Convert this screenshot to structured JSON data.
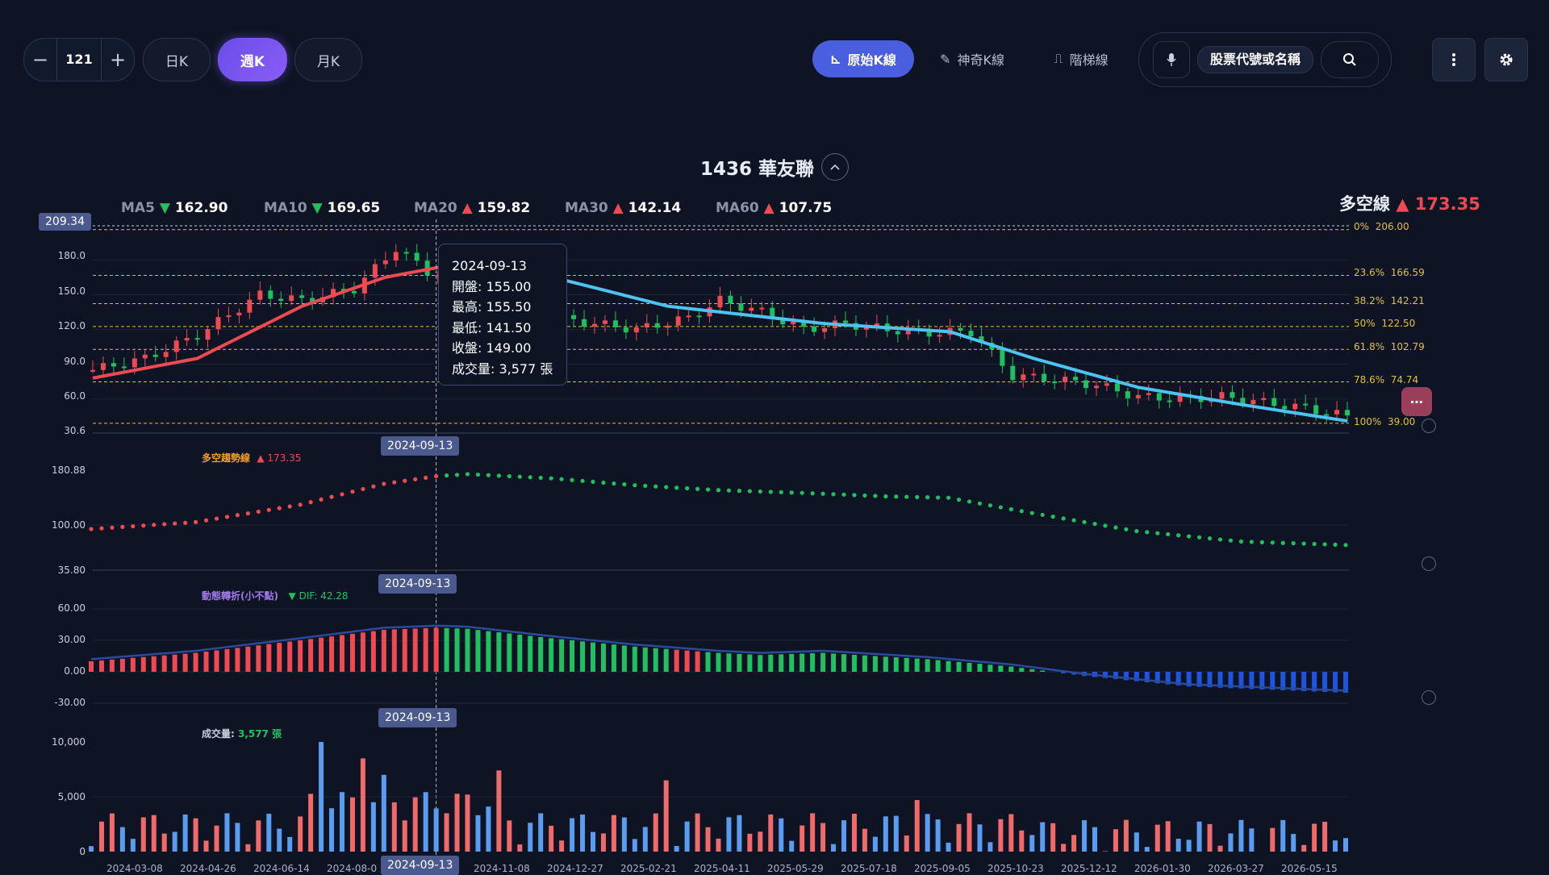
{
  "toolbar": {
    "stepper_value": "121",
    "minus": "−",
    "plus": "+",
    "period_tabs": [
      "日K",
      "週K",
      "月K"
    ],
    "active_period": "週K",
    "modes": [
      "原始K線",
      "神奇K線",
      "階梯線"
    ],
    "active_mode": "原始K線",
    "search_placeholder": "股票代號或名稱"
  },
  "stock": {
    "title": "1436 華友聯"
  },
  "ma": {
    "ma5": {
      "label": "MA5",
      "dir": "▼",
      "value": "162.90",
      "color": "#20c060"
    },
    "ma10": {
      "label": "MA10",
      "dir": "▼",
      "value": "169.65",
      "color": "#20c060"
    },
    "ma20": {
      "label": "MA20",
      "dir": "▲",
      "value": "159.82",
      "color": "#ef4a52"
    },
    "ma30": {
      "label": "MA30",
      "dir": "▲",
      "value": "142.14",
      "color": "#ef4a52"
    },
    "ma60": {
      "label": "MA60",
      "dir": "▲",
      "value": "107.75",
      "color": "#ef4a52"
    }
  },
  "duokong": {
    "label": "多空線",
    "value": "▲ 173.35"
  },
  "price_axis": {
    "current_tag": "209.34",
    "ticks": [
      "180.0",
      "150.0",
      "120.0",
      "90.0",
      "60.0",
      "30.6"
    ]
  },
  "fibonacci": [
    {
      "pct": "0%",
      "value": "206.00"
    },
    {
      "pct": "23.6%",
      "value": "166.59"
    },
    {
      "pct": "38.2%",
      "value": "142.21"
    },
    {
      "pct": "50%",
      "value": "122.50"
    },
    {
      "pct": "61.8%",
      "value": "102.79"
    },
    {
      "pct": "78.6%",
      "value": "74.74"
    },
    {
      "pct": "100%",
      "value": "39.00"
    }
  ],
  "tooltip": {
    "date": "2024-09-13",
    "open": "開盤: 155.00",
    "high": "最高: 155.50",
    "low": "最低: 141.50",
    "close": "收盤: 149.00",
    "volume": "成交量: 3,577 張"
  },
  "crosshair_date": "2024-09-13",
  "trend_panel": {
    "label": "多空趨勢線",
    "value": "▲ 173.35",
    "ticks": [
      "180.88",
      "100.00",
      "35.80"
    ]
  },
  "macd_panel": {
    "label": "動態轉折(小不點)",
    "value": "▼ DIF: 42.28",
    "ticks": [
      "60.00",
      "30.00",
      "0.00",
      "-30.00"
    ]
  },
  "volume_panel": {
    "label": "成交量:",
    "value": "3,577 張",
    "ticks": [
      "10,000",
      "5,000",
      "0"
    ]
  },
  "x_axis": [
    "2024-03-08",
    "2024-04-26",
    "2024-06-14",
    "2024-08-0",
    "2024-11-08",
    "2024-12-27",
    "2025-02-21",
    "2025-04-11",
    "2025-05-29",
    "2025-07-18",
    "2025-09-05",
    "2025-10-23",
    "2025-12-12",
    "2026-01-30",
    "2026-03-27",
    "2026-05-15"
  ],
  "colors": {
    "up": "#ef4a52",
    "down": "#20c060",
    "ma_red": "#ef4a52",
    "ma_blue": "#4cc3f0",
    "fib": "#e3c03a",
    "macd_neg": "#1d55e0",
    "vol_blue": "#5a9cf0",
    "vol_red": "#f06a6a"
  },
  "chart_data": [
    {
      "type": "line",
      "title": "1436 華友聯",
      "x": [
        "2024-03-08",
        "2024-06-14",
        "2024-09-13",
        "2024-12-27",
        "2025-04-11",
        "2025-07-18",
        "2025-10-23",
        "2026-01-30",
        "2026-05-15"
      ],
      "series": [
        {
          "name": "close",
          "values": [
            85,
            140,
            149,
            125,
            120,
            120,
            65,
            55,
            45
          ]
        }
      ],
      "ylim": [
        30.6,
        209.34
      ]
    },
    {
      "type": "line",
      "title": "多空趨勢線",
      "x": [
        "2024-03-08",
        "2024-06-14",
        "2024-09-13",
        "2024-12-27",
        "2025-04-11",
        "2025-07-18",
        "2025-10-23",
        "2026-01-30",
        "2026-05-15"
      ],
      "series": [
        {
          "name": "多空趨勢線",
          "values": [
            95,
            118,
            171,
            160,
            147,
            140,
            100,
            75,
            72
          ]
        }
      ],
      "ylim": [
        35.8,
        180.88
      ]
    },
    {
      "type": "bar",
      "title": "動態轉折(小不點)",
      "x": [
        "2024-03-08",
        "2024-06-14",
        "2024-09-13",
        "2024-12-27",
        "2025-04-11",
        "2025-07-18",
        "2025-10-23",
        "2026-01-30",
        "2026-05-15"
      ],
      "series": [
        {
          "name": "DIF",
          "values": [
            10,
            25,
            42.28,
            28,
            18,
            10,
            -12,
            -18,
            -20
          ]
        }
      ],
      "ylim": [
        -30,
        60
      ]
    },
    {
      "type": "bar",
      "title": "成交量",
      "x": [
        "2024-03-08",
        "2024-06-14",
        "2024-09-13",
        "2024-12-27",
        "2025-04-11",
        "2025-07-18",
        "2025-10-23",
        "2026-01-30",
        "2026-05-15"
      ],
      "series": [
        {
          "name": "成交量",
          "values": [
            500,
            3500,
            3577,
            1500,
            2200,
            2000,
            1200,
            1200,
            2500
          ]
        }
      ],
      "ylim": [
        0,
        10000
      ]
    }
  ]
}
